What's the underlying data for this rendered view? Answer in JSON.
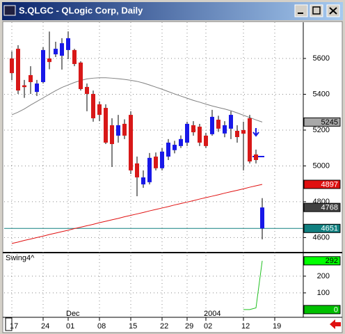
{
  "window": {
    "title": "S.QLGC - QLogic Corp, Daily"
  },
  "chart_data": [
    {
      "type": "candlestick",
      "categories": [
        "17",
        null,
        null,
        null,
        null,
        "24",
        null,
        null,
        null,
        "01",
        null,
        null,
        null,
        null,
        "08",
        null,
        null,
        null,
        null,
        "15",
        null,
        null,
        null,
        null,
        "22",
        null,
        null,
        null,
        "29",
        null,
        null,
        "02",
        null,
        null,
        null,
        null,
        null,
        "12",
        null,
        null,
        null,
        null,
        "19"
      ],
      "x_upper_labels": [
        null,
        null,
        null,
        null,
        null,
        null,
        null,
        null,
        null,
        "Dec",
        null,
        null,
        null,
        null,
        null,
        null,
        null,
        null,
        null,
        null,
        null,
        null,
        null,
        null,
        null,
        null,
        null,
        null,
        null,
        null,
        null,
        "2004",
        null,
        null,
        null,
        null,
        null,
        null,
        null,
        null,
        null,
        null,
        null
      ],
      "open": [
        5600,
        5654,
        5450,
        5507,
        5413,
        5468,
        5600,
        5623,
        5615,
        5647,
        5647,
        5577,
        5441,
        5402,
        5344,
        5324,
        5227,
        5169,
        5235,
        5285,
        5014,
        4897,
        4909,
        5052,
        4987,
        5052,
        5088,
        5111,
        5130,
        5227,
        5219,
        5169,
        5177,
        5258,
        5181,
        5208,
        5196,
        5200,
        5266,
        5064,
        4651,
        null,
        null
      ],
      "high": [
        5640,
        5674,
        5480,
        5557,
        5480,
        5662,
        5750,
        5693,
        5713,
        5751,
        5654,
        5584,
        5460,
        5421,
        5360,
        5344,
        5266,
        5285,
        5260,
        5305,
        5052,
        4975,
        5072,
        5075,
        5099,
        5150,
        5140,
        5170,
        5247,
        5250,
        5235,
        5185,
        5313,
        5280,
        5250,
        5305,
        5227,
        5247,
        5285,
        5091,
        4820,
        null,
        null
      ],
      "low": [
        5478,
        5402,
        5380,
        5402,
        5390,
        5460,
        5540,
        5608,
        5538,
        5596,
        5557,
        5421,
        5305,
        5247,
        5250,
        5122,
        4994,
        5130,
        5150,
        4955,
        4831,
        4878,
        4897,
        4975,
        4975,
        5033,
        5070,
        5100,
        5111,
        5169,
        5111,
        5100,
        5169,
        5190,
        5160,
        5150,
        5130,
        4975,
        5014,
        5014,
        4590,
        null,
        null
      ],
      "close": [
        5518,
        5421,
        5440,
        5468,
        5460,
        5647,
        5580,
        5654,
        5685,
        5713,
        5569,
        5429,
        5402,
        5266,
        5285,
        5130,
        5122,
        5227,
        5169,
        4975,
        4936,
        4936,
        5045,
        4987,
        5080,
        5130,
        5118,
        5150,
        5235,
        5188,
        5130,
        5111,
        5274,
        5208,
        5227,
        5285,
        5161,
        5180,
        5025,
        5033,
        4768,
        null,
        null
      ],
      "up_color": "#1818e8",
      "down_color": "#d81818",
      "lines": [
        {
          "color": "#808080",
          "values": [
            5285,
            5300,
            5318,
            5340,
            5360,
            5380,
            5400,
            5420,
            5438,
            5452,
            5466,
            5477,
            5486,
            5490,
            5492,
            5492,
            5490,
            5487,
            5483,
            5478,
            5472,
            5463,
            5452,
            5440,
            5428,
            5415,
            5402,
            5390,
            5378,
            5366,
            5356,
            5345,
            5335,
            5326,
            5318,
            5308,
            5296,
            5283,
            5270,
            5257,
            5245,
            null,
            null
          ]
        },
        {
          "color": "#e01010",
          "values": [
            4567,
            4575,
            4584,
            4592,
            4600,
            4608,
            4617,
            4625,
            4633,
            4641,
            4650,
            4658,
            4666,
            4674,
            4683,
            4691,
            4699,
            4707,
            4716,
            4724,
            4732,
            4740,
            4749,
            4757,
            4765,
            4773,
            4782,
            4790,
            4798,
            4806,
            4815,
            4823,
            4831,
            4839,
            4848,
            4856,
            4864,
            4872,
            4881,
            4889,
            4897,
            null,
            null
          ]
        }
      ],
      "badges": [
        {
          "value": 5245,
          "color": "#a8a8a8",
          "text_color": "#000000",
          "line": false
        },
        {
          "value": 4897,
          "color": "#e01010",
          "text_color": "#ffffff",
          "line": false
        },
        {
          "value": 4768,
          "color": "#404040",
          "text_color": "#ffffff",
          "line": false
        },
        {
          "value": 4651,
          "color": "#108080",
          "text_color": "#ffffff",
          "line": true
        }
      ],
      "ylim": [
        4520,
        5802
      ],
      "yticks": [
        4600,
        4800,
        5000,
        5200,
        5400,
        5600
      ],
      "grid": true
    },
    {
      "type": "line",
      "title": "Swing4^",
      "series": [
        {
          "color": "#20c020",
          "values": [
            null,
            null,
            null,
            null,
            null,
            null,
            null,
            null,
            null,
            null,
            null,
            null,
            null,
            null,
            null,
            null,
            null,
            null,
            null,
            null,
            null,
            null,
            null,
            null,
            null,
            null,
            null,
            null,
            null,
            null,
            null,
            null,
            null,
            null,
            null,
            null,
            null,
            0,
            0,
            10,
            292,
            null,
            null
          ]
        }
      ],
      "badges": [
        {
          "value": 292,
          "color": "#00ff00",
          "text_color": "#000000"
        },
        {
          "value": 0,
          "color": "#00c000",
          "text_color": "#ffffff"
        }
      ],
      "ylim": [
        -42,
        337
      ],
      "yticks": [
        100,
        200
      ],
      "grid": true
    }
  ]
}
